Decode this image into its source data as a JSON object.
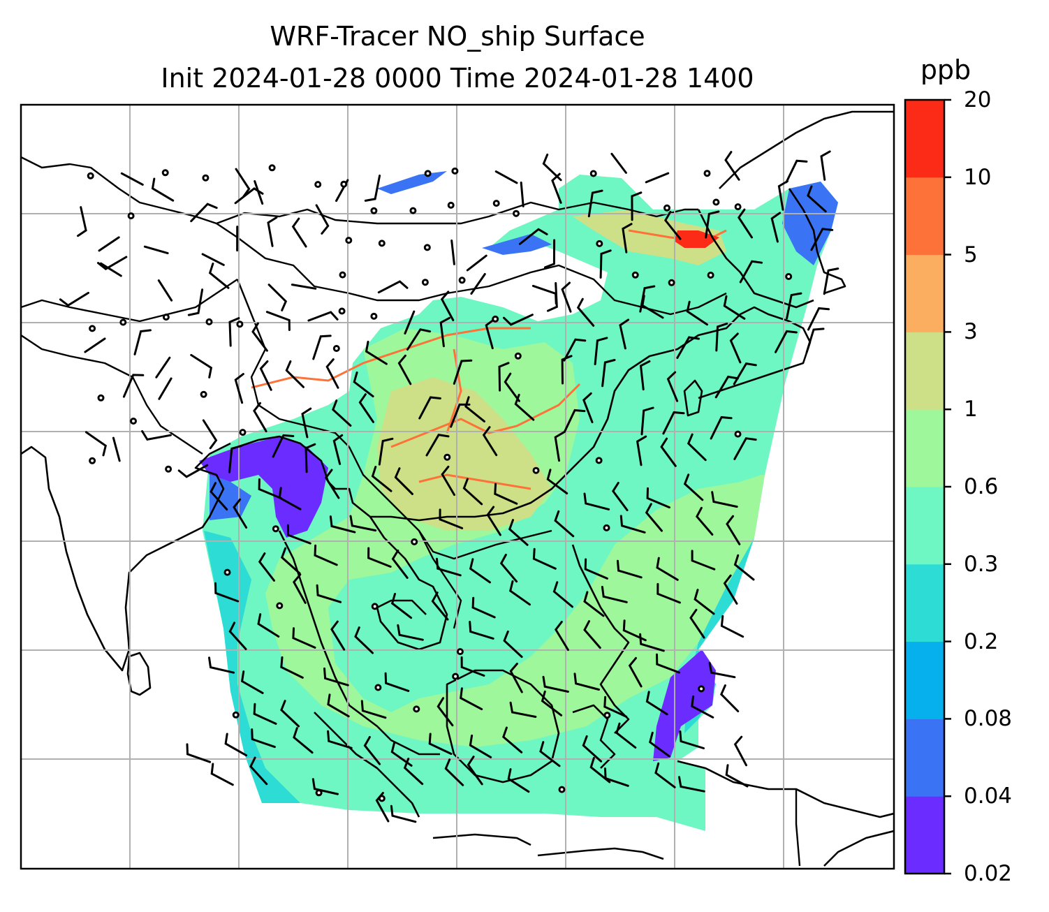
{
  "title": {
    "line1": "WRF-Tracer NO_ship Surface",
    "line2": "Init 2024-01-28 0000 Time 2024-01-28 1400"
  },
  "colorbar": {
    "unit": "ppb",
    "levels": [
      "0.02",
      "0.04",
      "0.08",
      "0.2",
      "0.2",
      "0.3",
      "0.6",
      "1",
      "3",
      "5",
      "10",
      "20"
    ],
    "tick_labels": [
      "0.02",
      "0.04",
      "0.08",
      "0.2",
      "0.3",
      "0.6",
      "1",
      "3",
      "5",
      "10",
      "20"
    ],
    "colors": [
      "#6a2cff",
      "#3a74f5",
      "#06b0ec",
      "#2ddcd4",
      "#6ef7c2",
      "#9ef79a",
      "#cde087",
      "#fbae60",
      "#fc7238",
      "#fb2b17"
    ]
  },
  "map": {
    "gridlines": true,
    "features": [
      "coastlines",
      "country borders",
      "wind barbs",
      "calm-wind circles"
    ],
    "field": "NO_ship surface concentration"
  }
}
